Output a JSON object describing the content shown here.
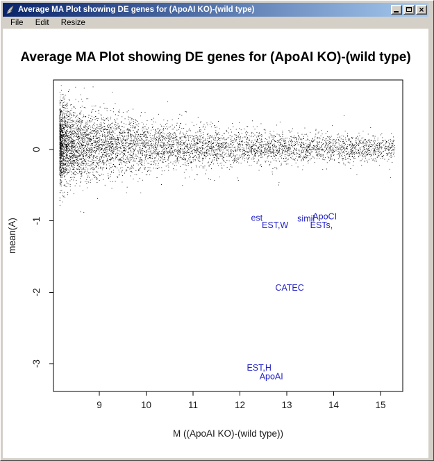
{
  "theme": {
    "chrome_bg": "#d4d0c8",
    "titlebar_gradient_start": "#0a246a",
    "titlebar_gradient_end": "#a6caf0",
    "titlebar_text_color": "#ffffff"
  },
  "window": {
    "title": "Average MA Plot showing DE genes for (ApoAI KO)-(wild type)",
    "icon": "feather-icon",
    "controls": {
      "minimize_label": "",
      "maximize_label": "",
      "close_label": "×"
    }
  },
  "menu": {
    "items": [
      {
        "label": "File"
      },
      {
        "label": "Edit"
      },
      {
        "label": "Resize"
      }
    ]
  },
  "chart_data": {
    "type": "scatter",
    "title": "Average MA Plot showing DE genes for (ApoAI KO)-(wild type)",
    "xlabel": "M ((ApoAI KO)-(wild type))",
    "ylabel": "mean(A)",
    "x_ticks": [
      9,
      10,
      11,
      12,
      13,
      14,
      15
    ],
    "y_ticks": [
      0,
      -1,
      -2,
      -3
    ],
    "xlim": [
      8.02,
      15.47
    ],
    "ylim": [
      -3.39,
      0.97
    ],
    "grid": false,
    "legend": "none",
    "point_color": "#000000",
    "tick_label_color": "#1a1a1a",
    "de_label_color": "#2121c8",
    "de_gene_labels": [
      {
        "text": "est",
        "x": 12.36,
        "y": -0.96
      },
      {
        "text": "EST,W",
        "x": 12.75,
        "y": -1.06
      },
      {
        "text": "simil",
        "x": 13.41,
        "y": -0.97
      },
      {
        "text": "ApoCI",
        "x": 13.81,
        "y": -0.94
      },
      {
        "text": "ESTs,",
        "x": 13.74,
        "y": -1.06
      },
      {
        "text": "CATEC",
        "x": 13.06,
        "y": -1.94
      },
      {
        "text": "EST,H",
        "x": 12.41,
        "y": -3.06
      },
      {
        "text": "ApoAI",
        "x": 12.67,
        "y": -3.18
      }
    ],
    "point_cloud": {
      "description": "dense unlabeled gene cloud centered near A=0, densest for M 8.3-11, thinning and narrowing toward M=15",
      "n": 6200,
      "seed": 1234,
      "x_min": 8.15,
      "x_span": 7.15,
      "x_pow": 2.0,
      "mean_amp": 0.07,
      "mean_decay": 4.0,
      "sigma_base": 0.075,
      "sigma_amp": 0.21,
      "sigma_decay": 2.6,
      "tail_frac": 0.03,
      "tail_mult": 2.0,
      "y_max": 0.9,
      "y_min": -0.92
    }
  }
}
